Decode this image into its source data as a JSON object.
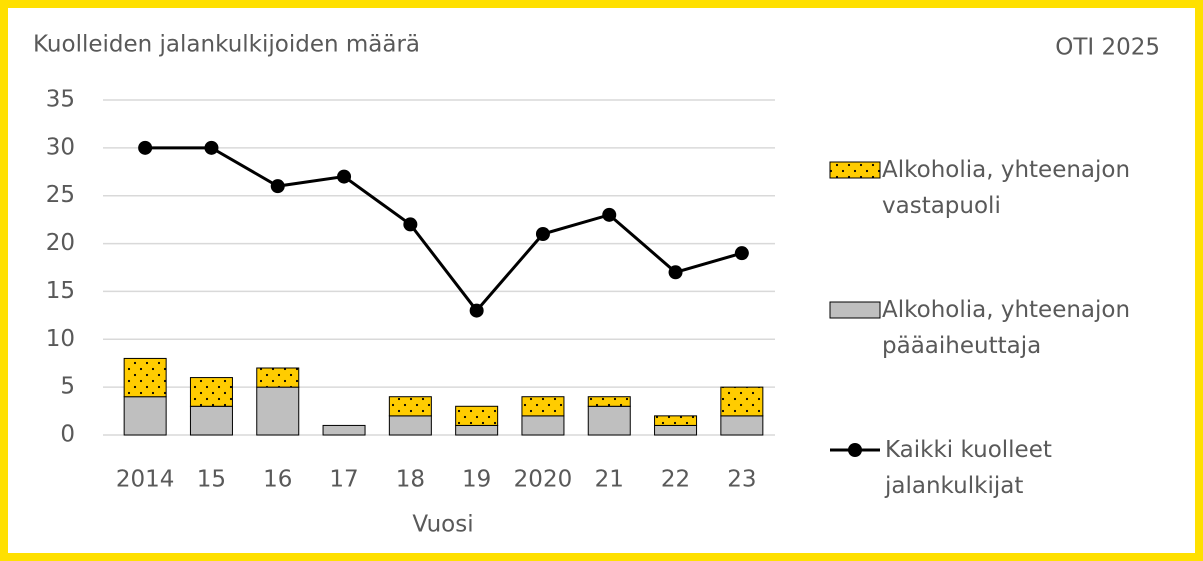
{
  "chart_data": {
    "type": "bar",
    "stacked": true,
    "title": "Kuolleiden jalankulkijoiden määrä",
    "source": "OTI 2025",
    "x_label": "Vuosi",
    "categories": [
      "2014",
      "15",
      "16",
      "17",
      "18",
      "19",
      "2020",
      "21",
      "22",
      "23"
    ],
    "series": [
      {
        "name": "Alkoholia, yhteenajon pääaiheuttaja",
        "type": "bar",
        "color": "#BFBFBF",
        "values": [
          4,
          3,
          5,
          1,
          2,
          1,
          2,
          3,
          1,
          2
        ]
      },
      {
        "name": "Alkoholia, yhteenajon vastapuoli",
        "type": "bar",
        "color": "#FFCC00",
        "pattern": "dots",
        "values": [
          4,
          3,
          2,
          0,
          2,
          2,
          2,
          1,
          1,
          3
        ]
      },
      {
        "name": "Kaikki kuolleet jalankulkijat",
        "type": "line",
        "color": "#000000",
        "values": [
          30,
          30,
          26,
          27,
          22,
          13,
          21,
          23,
          17,
          19
        ]
      }
    ],
    "legend_order": [
      1,
      0,
      2
    ],
    "ylim": [
      0,
      35
    ],
    "yticks": [
      0,
      5,
      10,
      15,
      20,
      25,
      30,
      35
    ],
    "grid": true,
    "legend": "right"
  }
}
